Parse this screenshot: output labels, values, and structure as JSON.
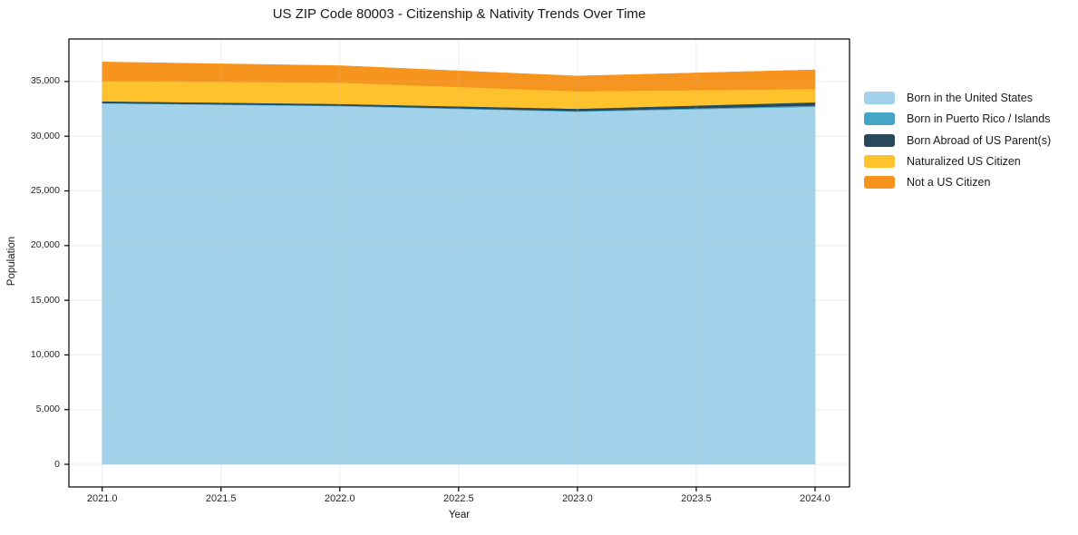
{
  "chart_data": {
    "type": "area",
    "stacked": true,
    "title": "US ZIP Code 80003 - Citizenship & Nativity Trends Over Time",
    "xlabel": "Year",
    "ylabel": "Population",
    "x": [
      2021,
      2022,
      2023,
      2024
    ],
    "series": [
      {
        "name": "Born in the United States",
        "color": "#a2d2e9",
        "values": [
          33000,
          32750,
          32250,
          32700
        ]
      },
      {
        "name": "Born in Puerto Rico / Islands",
        "color": "#44a5c4",
        "values": [
          40,
          50,
          60,
          100
        ]
      },
      {
        "name": "Born Abroad of US Parent(s)",
        "color": "#28495c",
        "values": [
          150,
          150,
          200,
          300
        ]
      },
      {
        "name": "Naturalized US Citizen",
        "color": "#fdc22c",
        "values": [
          1850,
          1950,
          1600,
          1225
        ]
      },
      {
        "name": "Not a US Citizen",
        "color": "#f7941e",
        "values": [
          1750,
          1550,
          1400,
          1750
        ]
      }
    ],
    "xlim": [
      2020.86,
      2024.145
    ],
    "ylim": [
      -2070,
      38890
    ],
    "xticks": {
      "values": [
        2021.0,
        2021.5,
        2022.0,
        2022.5,
        2023.0,
        2023.5,
        2024.0
      ],
      "labels": [
        "2021.0",
        "2021.5",
        "2022.0",
        "2022.5",
        "2023.0",
        "2023.5",
        "2024.0"
      ]
    },
    "yticks": {
      "values": [
        0,
        5000,
        10000,
        15000,
        20000,
        25000,
        30000,
        35000
      ],
      "labels": [
        "0",
        "5,000",
        "10,000",
        "15,000",
        "20,000",
        "25,000",
        "30,000",
        "35,000"
      ]
    },
    "grid": true,
    "legend_position": "right-outside"
  },
  "colors": {
    "spine": "#000000",
    "grid": "#bbbbbb",
    "tick_text": "#262626",
    "title_text": "#1a1a1a",
    "background": "#ffffff"
  }
}
